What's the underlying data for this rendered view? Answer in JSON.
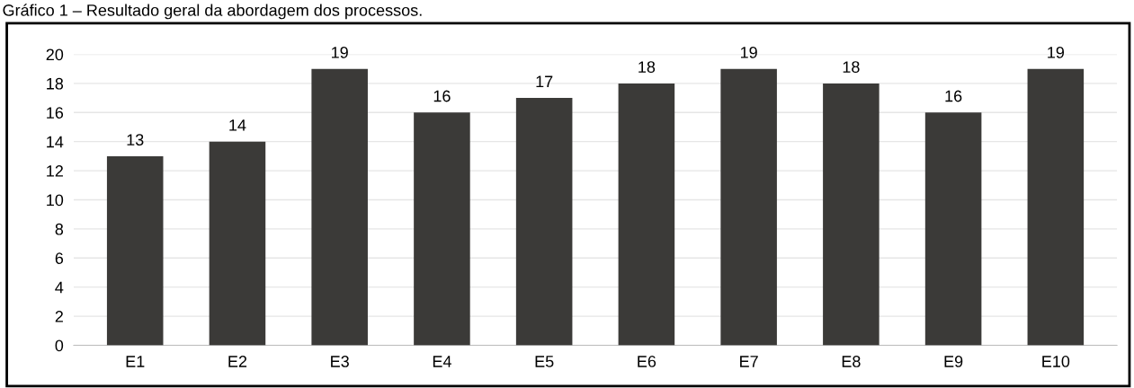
{
  "chart_data": {
    "type": "bar",
    "title": "Gráfico 1 – Resultado geral da abordagem dos processos.",
    "categories": [
      "E1",
      "E2",
      "E3",
      "E4",
      "E5",
      "E6",
      "E7",
      "E8",
      "E9",
      "E10"
    ],
    "values": [
      13,
      14,
      19,
      16,
      17,
      18,
      19,
      18,
      16,
      19
    ],
    "color": "#3b3a38",
    "ylim": [
      0,
      20
    ],
    "yticks": [
      0,
      2,
      4,
      6,
      8,
      10,
      12,
      14,
      16,
      18,
      20
    ],
    "grid": "y",
    "data_labels": true
  }
}
